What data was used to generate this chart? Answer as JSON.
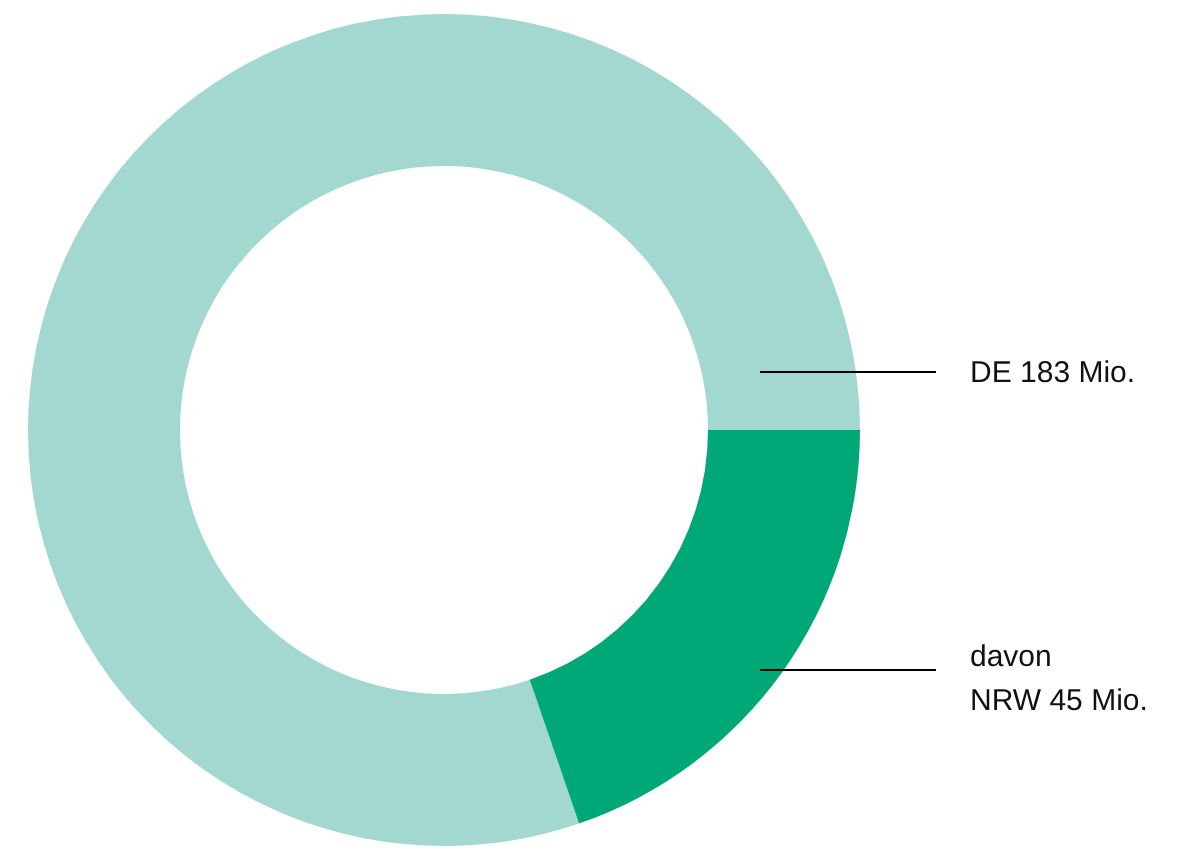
{
  "chart_data": {
    "type": "donut",
    "categories": [
      "DE 183 Mio.",
      "davon\nNRW 45 Mio."
    ],
    "values": [
      183,
      45
    ],
    "colors": [
      "#a2d8cf",
      "#00a878"
    ]
  }
}
